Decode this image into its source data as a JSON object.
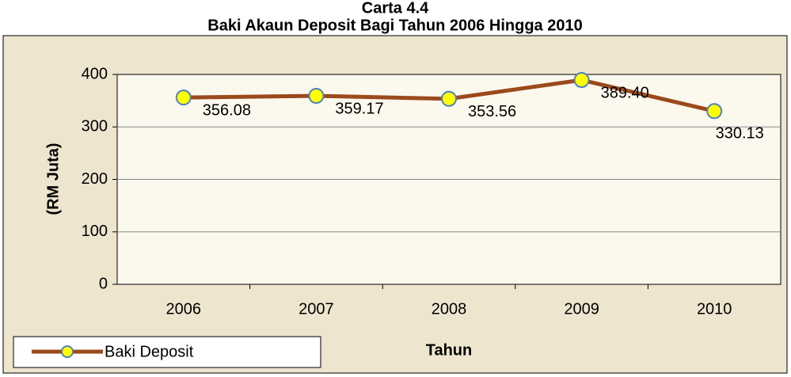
{
  "chart_data": {
    "type": "line",
    "title": "Carta 4.4",
    "subtitle": "Baki Akaun Deposit Bagi Tahun 2006 Hingga 2010",
    "x_label": "Tahun",
    "y_label": "(RM Juta)",
    "categories": [
      "2006",
      "2007",
      "2008",
      "2009",
      "2010"
    ],
    "series": [
      {
        "name": "Baki Deposit",
        "color": "#9b4a1c",
        "values": [
          356.08,
          359.17,
          353.56,
          389.4,
          330.13
        ],
        "value_labels": [
          "356.08",
          "359.17",
          "353.56",
          "389.40",
          "330.13"
        ]
      }
    ],
    "ylim": [
      0,
      400
    ],
    "yticks": [
      0,
      100,
      200,
      300,
      400
    ],
    "grid": true,
    "legend": "bottom-left"
  }
}
